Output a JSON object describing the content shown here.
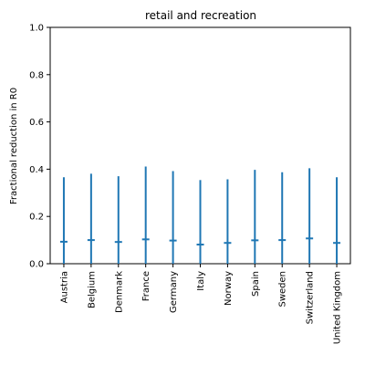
{
  "chart_data": {
    "type": "errorbar",
    "title": "retail and recreation",
    "xlabel": "",
    "ylabel": "Fractional reduction in R0",
    "ylim": [
      0.0,
      1.0
    ],
    "yticks": [
      0.0,
      0.2,
      0.4,
      0.6,
      0.8,
      1.0
    ],
    "ytick_labels": [
      "0.0",
      "0.2",
      "0.4",
      "0.6",
      "0.8",
      "1.0"
    ],
    "categories": [
      "Austria",
      "Belgium",
      "Denmark",
      "France",
      "Germany",
      "Italy",
      "Norway",
      "Spain",
      "Sweden",
      "Switzerland",
      "United Kingdom"
    ],
    "series": [
      {
        "median": [
          0.093,
          0.1,
          0.092,
          0.103,
          0.098,
          0.081,
          0.088,
          0.099,
          0.1,
          0.107,
          0.088
        ],
        "lower": [
          0.0,
          0.0,
          0.0,
          0.0,
          0.0,
          0.0,
          0.0,
          0.0,
          0.0,
          0.0,
          0.0
        ],
        "upper": [
          0.366,
          0.381,
          0.37,
          0.411,
          0.392,
          0.354,
          0.357,
          0.397,
          0.387,
          0.404,
          0.366
        ]
      }
    ],
    "color": "#1f77b4",
    "grid": false
  }
}
